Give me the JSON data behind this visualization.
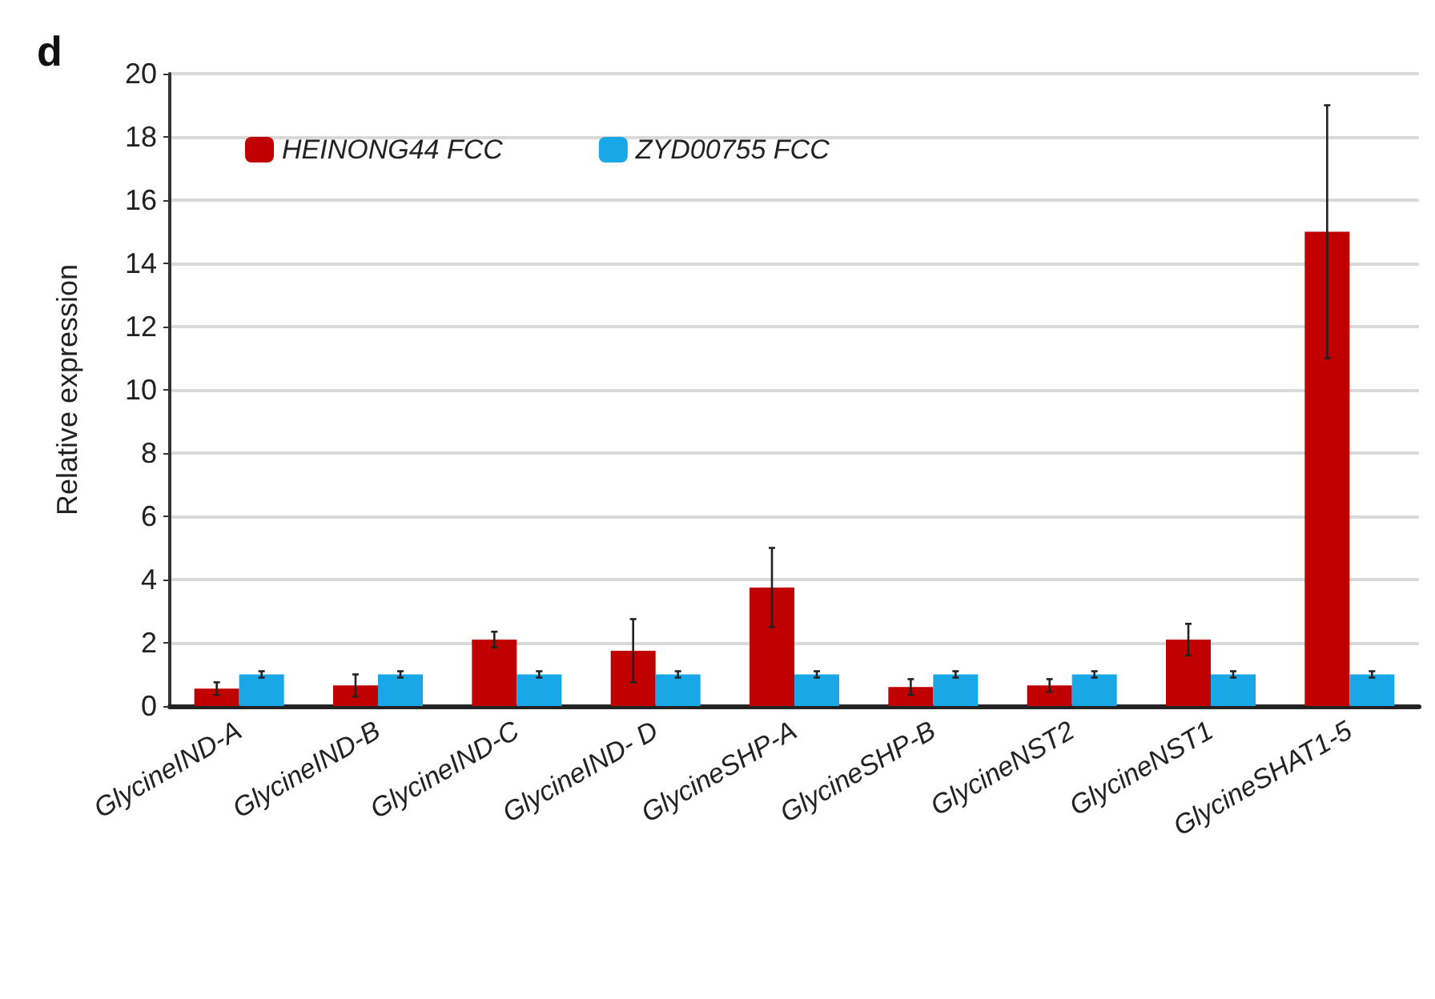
{
  "chart_data": {
    "type": "bar",
    "title": "d",
    "ylabel": "Relative expression",
    "categories": [
      "GlycineIND-A",
      "GlycineIND-B",
      "GlycineIND-C",
      "GlycineIND- D",
      "GlycineSHP-A",
      "GlycineSHP-B",
      "GlycineNST2",
      "GlycineNST1",
      "GlycineSHAT1-5"
    ],
    "series": [
      {
        "name": "HEINONG44 FCC",
        "color": "#c00000",
        "values": [
          0.55,
          0.65,
          2.1,
          1.75,
          3.75,
          0.6,
          0.65,
          2.1,
          15
        ],
        "errors": [
          0.2,
          0.35,
          0.25,
          1.0,
          1.25,
          0.25,
          0.2,
          0.5,
          4
        ]
      },
      {
        "name": "ZYD00755 FCC",
        "color": "#1aa7e8",
        "values": [
          1,
          1,
          1,
          1,
          1,
          1,
          1,
          1,
          1
        ],
        "errors": [
          0.1,
          0.1,
          0.1,
          0.1,
          0.1,
          0.1,
          0.1,
          0.1,
          0.1
        ]
      }
    ],
    "ylim": [
      0,
      20
    ],
    "yticks": [
      0,
      2,
      4,
      6,
      8,
      10,
      12,
      14,
      16,
      18,
      20
    ],
    "grid": "y",
    "legend": "top left"
  }
}
